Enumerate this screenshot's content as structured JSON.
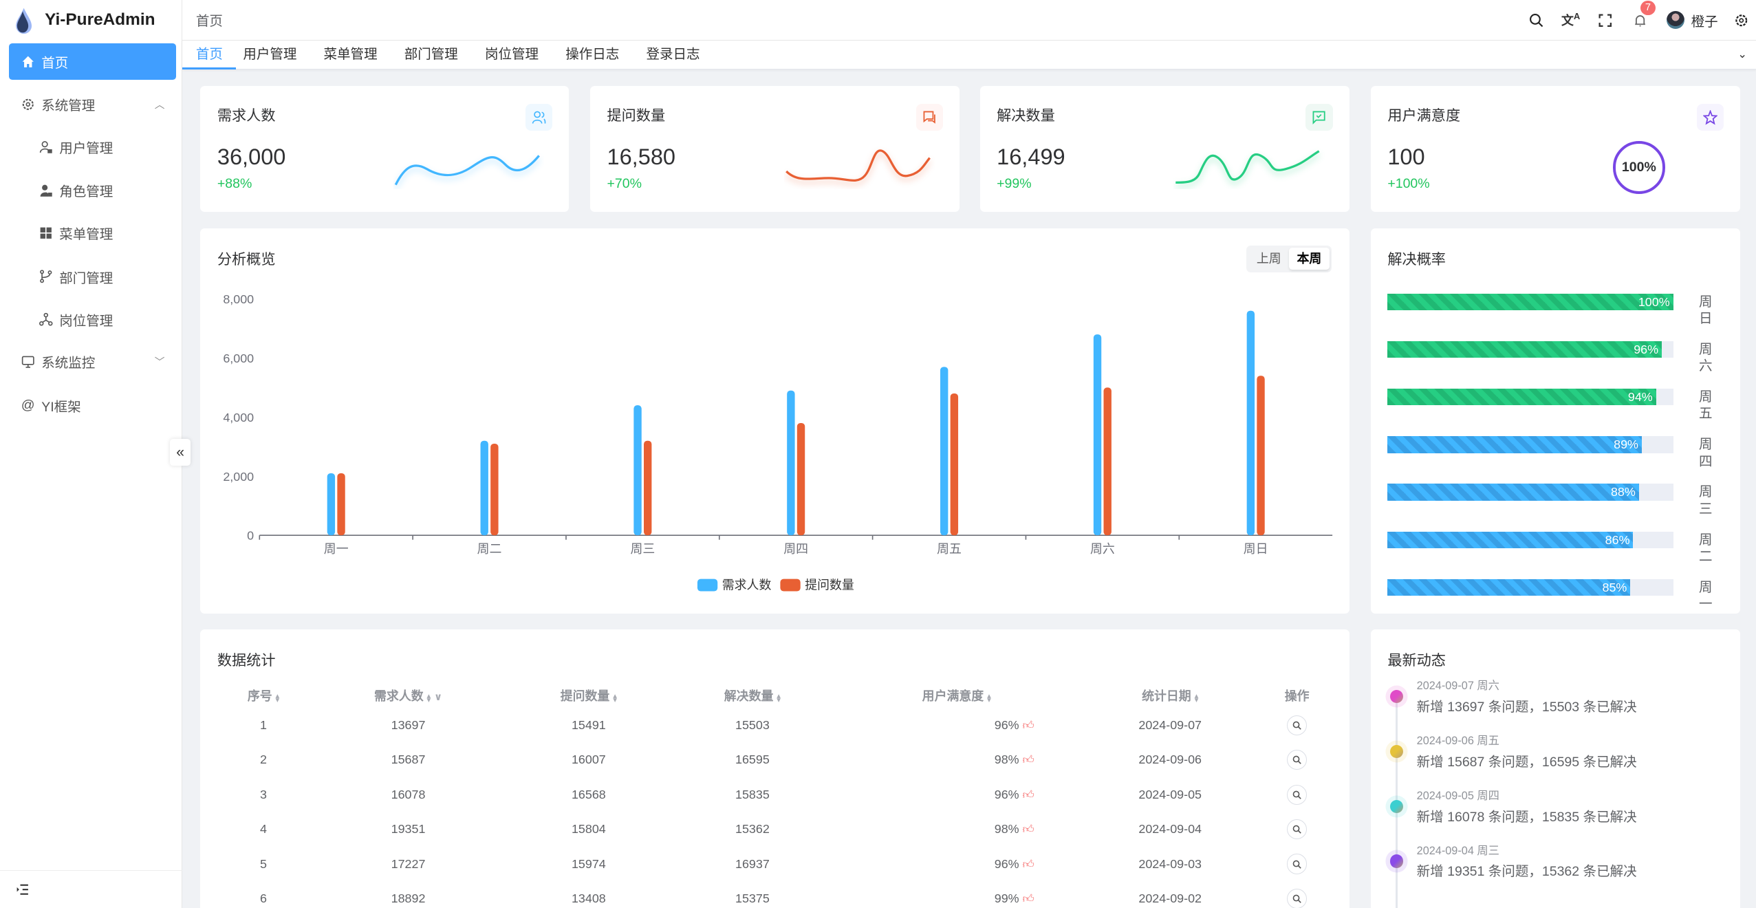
{
  "app": {
    "title": "Yi-PureAdmin"
  },
  "sidebar": {
    "items": [
      {
        "label": "首页",
        "icon": "home-icon",
        "active": true
      },
      {
        "label": "系统管理",
        "icon": "gear-icon",
        "expanded": true
      },
      {
        "label": "用户管理",
        "icon": "user-lock-icon"
      },
      {
        "label": "角色管理",
        "icon": "role-icon"
      },
      {
        "label": "菜单管理",
        "icon": "grid-icon"
      },
      {
        "label": "部门管理",
        "icon": "branch-icon"
      },
      {
        "label": "岗位管理",
        "icon": "network-icon"
      },
      {
        "label": "系统监控",
        "icon": "monitor-icon",
        "expanded": false
      },
      {
        "label": "YI框架",
        "icon": "at-icon"
      }
    ]
  },
  "header": {
    "breadcrumb": "首页",
    "notifications": "7",
    "username": "橙子"
  },
  "tabs": [
    "首页",
    "用户管理",
    "菜单管理",
    "部门管理",
    "岗位管理",
    "操作日志",
    "登录日志"
  ],
  "stats": [
    {
      "title": "需求人数",
      "value": "36,000",
      "percent": "+88%",
      "color": "#41b6ff"
    },
    {
      "title": "提问数量",
      "value": "16,580",
      "percent": "+70%",
      "color": "#e85f33"
    },
    {
      "title": "解决数量",
      "value": "16,499",
      "percent": "+99%",
      "color": "#26ce83"
    },
    {
      "title": "用户满意度",
      "value": "100",
      "percent": "+100%",
      "color": "#7846e5",
      "ring": "100%"
    }
  ],
  "overview": {
    "title": "分析概览",
    "toggle": [
      "上周",
      "本周"
    ],
    "selected": "本周"
  },
  "chart_data": {
    "type": "bar",
    "categories": [
      "周一",
      "周二",
      "周三",
      "周四",
      "周五",
      "周六",
      "周日"
    ],
    "series": [
      {
        "name": "需求人数",
        "color": "#41b6ff",
        "values": [
          2100,
          3200,
          4400,
          4900,
          5700,
          6800,
          7600
        ]
      },
      {
        "name": "提问数量",
        "color": "#e86033",
        "values": [
          2100,
          3100,
          3200,
          3800,
          4800,
          5000,
          5400
        ]
      }
    ],
    "yticks": [
      "0",
      "2,000",
      "4,000",
      "6,000",
      "8,000"
    ],
    "ylim": [
      0,
      8000
    ],
    "legend": "bottom"
  },
  "resolve": {
    "title": "解决概率",
    "rows": [
      {
        "day": "周日",
        "value": 100,
        "label": "100%",
        "color": "#26ce83"
      },
      {
        "day": "周六",
        "value": 96,
        "label": "96%",
        "color": "#26ce83"
      },
      {
        "day": "周五",
        "value": 94,
        "label": "94%",
        "color": "#26ce83"
      },
      {
        "day": "周四",
        "value": 89,
        "label": "89%",
        "color": "#41b6ff"
      },
      {
        "day": "周三",
        "value": 88,
        "label": "88%",
        "color": "#41b6ff"
      },
      {
        "day": "周二",
        "value": 86,
        "label": "86%",
        "color": "#41b6ff"
      },
      {
        "day": "周一",
        "value": 85,
        "label": "85%",
        "color": "#41b6ff"
      }
    ]
  },
  "table": {
    "title": "数据统计",
    "columns": [
      "序号",
      "需求人数",
      "提问数量",
      "解决数量",
      "用户满意度",
      "统计日期",
      "操作"
    ],
    "rows": [
      [
        "1",
        "13697",
        "15491",
        "15503",
        "96%",
        "2024-09-07"
      ],
      [
        "2",
        "15687",
        "16007",
        "16595",
        "98%",
        "2024-09-06"
      ],
      [
        "3",
        "16078",
        "16568",
        "15835",
        "96%",
        "2024-09-05"
      ],
      [
        "4",
        "19351",
        "15804",
        "15362",
        "98%",
        "2024-09-04"
      ],
      [
        "5",
        "17227",
        "15974",
        "16937",
        "96%",
        "2024-09-03"
      ],
      [
        "6",
        "18892",
        "13408",
        "15375",
        "99%",
        "2024-09-02"
      ]
    ]
  },
  "timeline": {
    "title": "最新动态",
    "items": [
      {
        "date": "2024-09-07 周六",
        "text": "新增 13697 条问题，15503 条已解决",
        "color": "#e04bc8"
      },
      {
        "date": "2024-09-06 周五",
        "text": "新增 15687 条问题，16595 条已解决",
        "color": "#e5c23a"
      },
      {
        "date": "2024-09-05 周四",
        "text": "新增 16078 条问题，15835 条已解决",
        "color": "#3ccfd0"
      },
      {
        "date": "2024-09-04 周三",
        "text": "新增 19351 条问题，15362 条已解决",
        "color": "#8a4be8"
      }
    ]
  }
}
